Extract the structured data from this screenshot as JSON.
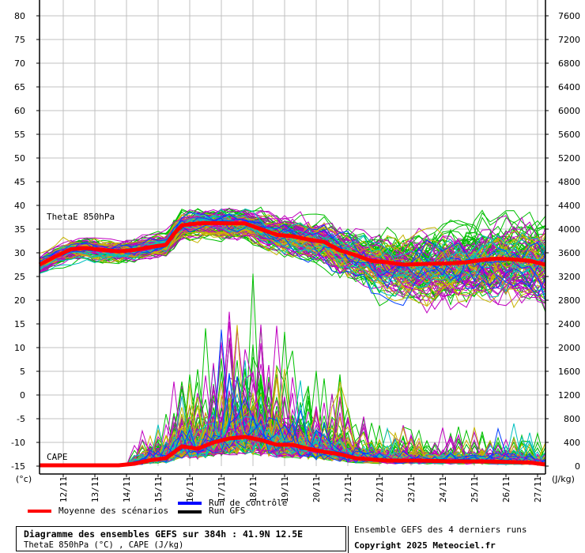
{
  "chart_data": {
    "type": "line",
    "title": "Diagramme des ensembles GEFS sur 384h : 41.9N 12.5E",
    "subtitle": "ThetaE 850hPa (°C) , CAPE (J/kg)",
    "x_tick_labels": [
      "12/11",
      "13/11",
      "14/11",
      "15/11",
      "16/11",
      "17/11",
      "18/11",
      "19/11",
      "20/11",
      "21/11",
      "22/11",
      "23/11",
      "24/11",
      "25/11",
      "26/11",
      "27/11"
    ],
    "x_range_hours": [
      0,
      384
    ],
    "x_start": "11/11 06h",
    "y_left": {
      "label": "(°c)",
      "range": [
        -15,
        80
      ],
      "ticks": [
        80,
        75,
        70,
        65,
        60,
        55,
        50,
        45,
        40,
        35,
        30,
        25,
        20,
        15,
        10,
        5,
        0,
        -5,
        -10,
        -15
      ]
    },
    "y_right": {
      "label": "(J/kg)",
      "range": [
        0,
        7600
      ],
      "ticks": [
        7600,
        7200,
        6800,
        6400,
        6000,
        5600,
        5200,
        4800,
        4400,
        4000,
        3600,
        3200,
        2800,
        2400,
        2000,
        1600,
        1200,
        800,
        400,
        0
      ]
    },
    "grid": true,
    "annotations": [
      "ThetaE 850hPa",
      "CAPE"
    ],
    "series": [
      {
        "name": "Moyenne des scénarios (ThetaE 850hPa, °C)",
        "axis": "left",
        "color": "#ff0000",
        "hours": [
          0,
          12,
          24,
          36,
          48,
          60,
          72,
          84,
          96,
          102,
          108,
          120,
          132,
          144,
          156,
          168,
          180,
          192,
          204,
          216,
          228,
          240,
          252,
          264,
          276,
          288,
          300,
          312,
          324,
          336,
          348,
          360,
          372,
          384
        ],
        "values": [
          27.5,
          29.2,
          30.8,
          31.0,
          30.6,
          30.3,
          30.6,
          31.2,
          31.7,
          34.0,
          35.8,
          36.2,
          36.3,
          36.2,
          36.2,
          35.0,
          33.8,
          33.5,
          32.8,
          32.3,
          30.5,
          29.5,
          28.3,
          28.0,
          27.5,
          27.6,
          27.7,
          27.8,
          28.0,
          28.5,
          28.8,
          28.6,
          28.3,
          27.5
        ]
      },
      {
        "name": "Moyenne des scénarios (CAPE, J/kg)",
        "axis": "right",
        "color": "#ff0000",
        "hours": [
          0,
          24,
          48,
          60,
          72,
          84,
          96,
          108,
          120,
          132,
          144,
          156,
          168,
          180,
          192,
          204,
          216,
          228,
          240,
          264,
          288,
          312,
          336,
          360,
          372,
          384
        ],
        "values": [
          13,
          13,
          13,
          13,
          40,
          100,
          133,
          333,
          293,
          400,
          467,
          493,
          440,
          360,
          360,
          293,
          240,
          200,
          133,
          93,
          93,
          80,
          80,
          67,
          60,
          27
        ]
      }
    ],
    "ensemble_member_colors": [
      "#00c000",
      "#c000c0",
      "#c8b400",
      "#00c0c0",
      "#0040ff"
    ]
  },
  "labels": {
    "thetae": "ThetaE 850hPa",
    "cape": "CAPE",
    "left_unit": "(°c)",
    "right_unit": "(J/kg)"
  },
  "legend": {
    "mean": {
      "label": "Moyenne des scénarios",
      "color": "#ff0000"
    },
    "control": {
      "label": "Run de contrôle",
      "color": "#0000ff"
    },
    "gfs": {
      "label": "Run GFS",
      "color": "#000000"
    }
  },
  "footer": {
    "title": "Diagramme des ensembles GEFS sur 384h : 41.9N 12.5E",
    "subtitle": "ThetaE 850hPa (°C) , CAPE (J/kg)",
    "ensemble_note": "Ensemble GEFS des 4 derniers runs",
    "copyright": "Copyright 2025 Meteociel.fr"
  }
}
